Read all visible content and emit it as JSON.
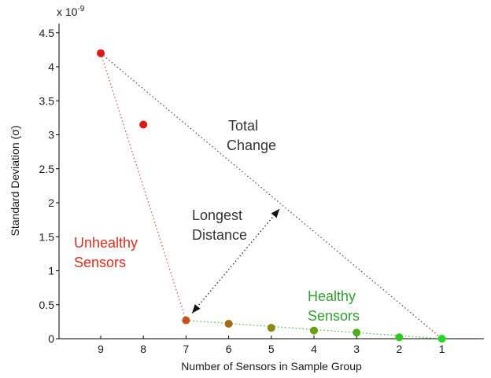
{
  "chart_data": {
    "type": "scatter",
    "title": "",
    "xlabel": "Number of Sensors in Sample Group",
    "ylabel": "Standard Deviation (σ)",
    "exponent_base": "x 10",
    "exponent_power": "-9",
    "x_categories": [
      "9",
      "8",
      "7",
      "6",
      "5",
      "4",
      "3",
      "2",
      "1"
    ],
    "yticks": [
      "0",
      "0.5",
      "1",
      "1.5",
      "2",
      "2.5",
      "3",
      "3.5",
      "4",
      "4.5"
    ],
    "ylim": [
      0,
      4.5
    ],
    "grid": false,
    "points": [
      {
        "x": "9",
        "y": 4.2,
        "color": "#e01a12"
      },
      {
        "x": "8",
        "y": 3.15,
        "color": "#e01a12"
      },
      {
        "x": "7",
        "y": 0.27,
        "color": "#c8501a"
      },
      {
        "x": "6",
        "y": 0.22,
        "color": "#a86a10"
      },
      {
        "x": "5",
        "y": 0.16,
        "color": "#8c8a10"
      },
      {
        "x": "4",
        "y": 0.12,
        "color": "#6aa010"
      },
      {
        "x": "3",
        "y": 0.09,
        "color": "#4cb018"
      },
      {
        "x": "2",
        "y": 0.02,
        "color": "#2ec81c"
      },
      {
        "x": "1",
        "y": 0.0,
        "color": "#22d822"
      }
    ],
    "annotations": {
      "total_change": [
        "Total",
        "Change"
      ],
      "longest_distance": [
        "Longest",
        "Distance"
      ],
      "unhealthy": [
        "Unhealthy",
        "Sensors"
      ],
      "healthy": [
        "Healthy",
        "Sensors"
      ]
    },
    "colors": {
      "unhealthy": "#e02a1a",
      "healthy": "#2ea02e",
      "annotation": "#333333",
      "red_dotted": "#e05050",
      "gray_dotted": "#555555",
      "green_dotted": "#40c040"
    }
  }
}
